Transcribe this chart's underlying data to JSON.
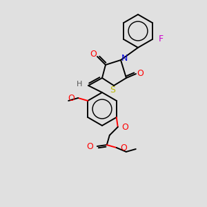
{
  "bg_color": "#e0e0e0",
  "line_color": "#000000",
  "bond_lw": 1.4,
  "figsize": [
    3.0,
    3.0
  ],
  "dpi": 100,
  "xlim": [
    0,
    300
  ],
  "ylim": [
    0,
    300
  ],
  "colors": {
    "F": "#cc00cc",
    "O": "#ff0000",
    "N": "#0000dd",
    "S": "#bbbb00",
    "H": "#555555",
    "bond": "#000000"
  }
}
